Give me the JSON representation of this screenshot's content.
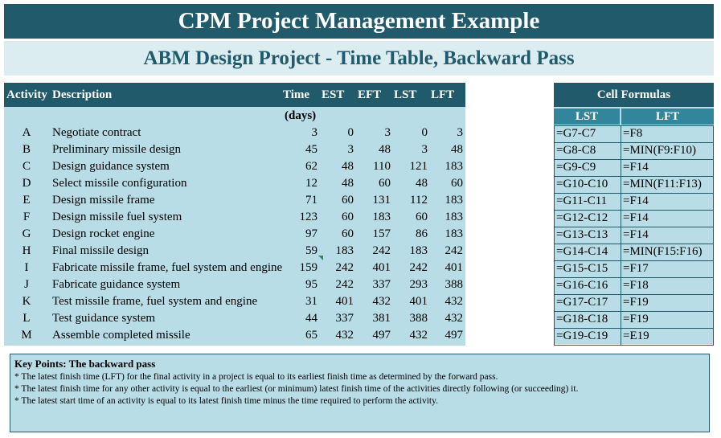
{
  "title": "CPM Project Management Example",
  "subtitle": "ABM Design Project - Time Table, Backward Pass",
  "main_table": {
    "headers": {
      "activity": "Activity",
      "description": "Description",
      "time": "Time",
      "est": "EST",
      "eft": "EFT",
      "lst": "LST",
      "lft": "LFT"
    },
    "units": "(days)",
    "rows": [
      {
        "activity": "A",
        "description": "Negotiate contract",
        "time": "3",
        "est": "0",
        "eft": "3",
        "lst": "0",
        "lft": "3"
      },
      {
        "activity": "B",
        "description": "Preliminary missile design",
        "time": "45",
        "est": "3",
        "eft": "48",
        "lst": "3",
        "lft": "48"
      },
      {
        "activity": "C",
        "description": "Design guidance system",
        "time": "62",
        "est": "48",
        "eft": "110",
        "lst": "121",
        "lft": "183"
      },
      {
        "activity": "D",
        "description": "Select missile configuration",
        "time": "12",
        "est": "48",
        "eft": "60",
        "lst": "48",
        "lft": "60"
      },
      {
        "activity": "E",
        "description": "Design missile frame",
        "time": "71",
        "est": "60",
        "eft": "131",
        "lst": "112",
        "lft": "183"
      },
      {
        "activity": "F",
        "description": "Design missile fuel system",
        "time": "123",
        "est": "60",
        "eft": "183",
        "lst": "60",
        "lft": "183"
      },
      {
        "activity": "G",
        "description": "Design rocket engine",
        "time": "97",
        "est": "60",
        "eft": "157",
        "lst": "86",
        "lft": "183"
      },
      {
        "activity": "H",
        "description": "Final missile design",
        "time": "59",
        "est": "183",
        "eft": "242",
        "lst": "183",
        "lft": "242"
      },
      {
        "activity": "I",
        "description": "Fabricate missile frame, fuel system and engine",
        "time": "159",
        "est": "242",
        "eft": "401",
        "lst": "242",
        "lft": "401"
      },
      {
        "activity": "J",
        "description": "Fabricate guidance system",
        "time": "95",
        "est": "242",
        "eft": "337",
        "lst": "293",
        "lft": "388"
      },
      {
        "activity": "K",
        "description": "Test missile frame, fuel system and engine",
        "time": "31",
        "est": "401",
        "eft": "432",
        "lst": "401",
        "lft": "432"
      },
      {
        "activity": "L",
        "description": "Test guidance system",
        "time": "44",
        "est": "337",
        "eft": "381",
        "lst": "388",
        "lft": "432"
      },
      {
        "activity": "M",
        "description": "Assemble completed missile",
        "time": "65",
        "est": "432",
        "eft": "497",
        "lst": "432",
        "lft": "497"
      }
    ]
  },
  "formulas": {
    "title": "Cell Formulas",
    "col_lst": "LST",
    "col_lft": "LFT",
    "rows": [
      {
        "lst": "=G7-C7",
        "lft": "=F8"
      },
      {
        "lst": "=G8-C8",
        "lft": "=MIN(F9:F10)"
      },
      {
        "lst": "=G9-C9",
        "lft": "=F14"
      },
      {
        "lst": "=G10-C10",
        "lft": "=MIN(F11:F13)"
      },
      {
        "lst": "=G11-C11",
        "lft": "=F14"
      },
      {
        "lst": "=G12-C12",
        "lft": "=F14"
      },
      {
        "lst": "=G13-C13",
        "lft": "=F14"
      },
      {
        "lst": "=G14-C14",
        "lft": "=MIN(F15:F16)"
      },
      {
        "lst": "=G15-C15",
        "lft": "=F17"
      },
      {
        "lst": "=G16-C16",
        "lft": "=F18"
      },
      {
        "lst": "=G17-C17",
        "lft": "=F19"
      },
      {
        "lst": "=G18-C18",
        "lft": "=F19"
      },
      {
        "lst": "=G19-C19",
        "lft": "=E19"
      }
    ]
  },
  "key_points": {
    "title": "Key Points: The backward pass",
    "lines": [
      "* The latest finish time (LFT)  for the final activity in a project is equal to its earliest finish time  as determined by the forward pass.",
      "* The latest finish time  for any other activity is equal to the earliest (or minimum)  latest finish time  of the activities directly following  (or succeeding) it.",
      "* The latest start time of an activity is equal to its latest finish time  minus  the time  required to perform  the activity."
    ]
  },
  "colors": {
    "header_dark": "#215a6b",
    "subtitle_bg": "#dcedf2",
    "table_bg": "#b8dde6",
    "formula_col_header": "#31869b"
  }
}
